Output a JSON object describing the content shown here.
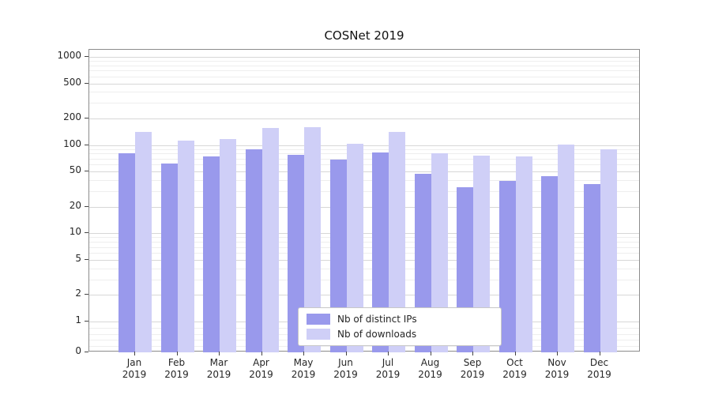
{
  "chart_data": {
    "type": "bar",
    "title": "COSNet 2019",
    "x_year": "2019",
    "categories": [
      "Jan",
      "Feb",
      "Mar",
      "Apr",
      "May",
      "Jun",
      "Jul",
      "Aug",
      "Sep",
      "Oct",
      "Nov",
      "Dec"
    ],
    "series": [
      {
        "name": "Nb of distinct IPs",
        "color": "#9999ec",
        "values": [
          80,
          62,
          75,
          90,
          78,
          68,
          83,
          47,
          33,
          39,
          44,
          36
        ]
      },
      {
        "name": "Nb of downloads",
        "color": "#cfcff7",
        "values": [
          140,
          112,
          118,
          155,
          160,
          103,
          140,
          80,
          76,
          74,
          102,
          90
        ]
      }
    ],
    "yscale": "symlog",
    "yticks": [
      0,
      1,
      2,
      5,
      10,
      20,
      50,
      100,
      200,
      500,
      1000
    ],
    "yticks_minor": [
      0.2,
      0.4,
      0.6,
      0.8,
      3,
      4,
      6,
      7,
      8,
      9,
      30,
      40,
      60,
      70,
      80,
      90,
      300,
      400,
      600,
      700,
      800,
      900
    ],
    "ylim": [
      0,
      1200
    ],
    "grid": true,
    "legend_position": "lower center"
  }
}
